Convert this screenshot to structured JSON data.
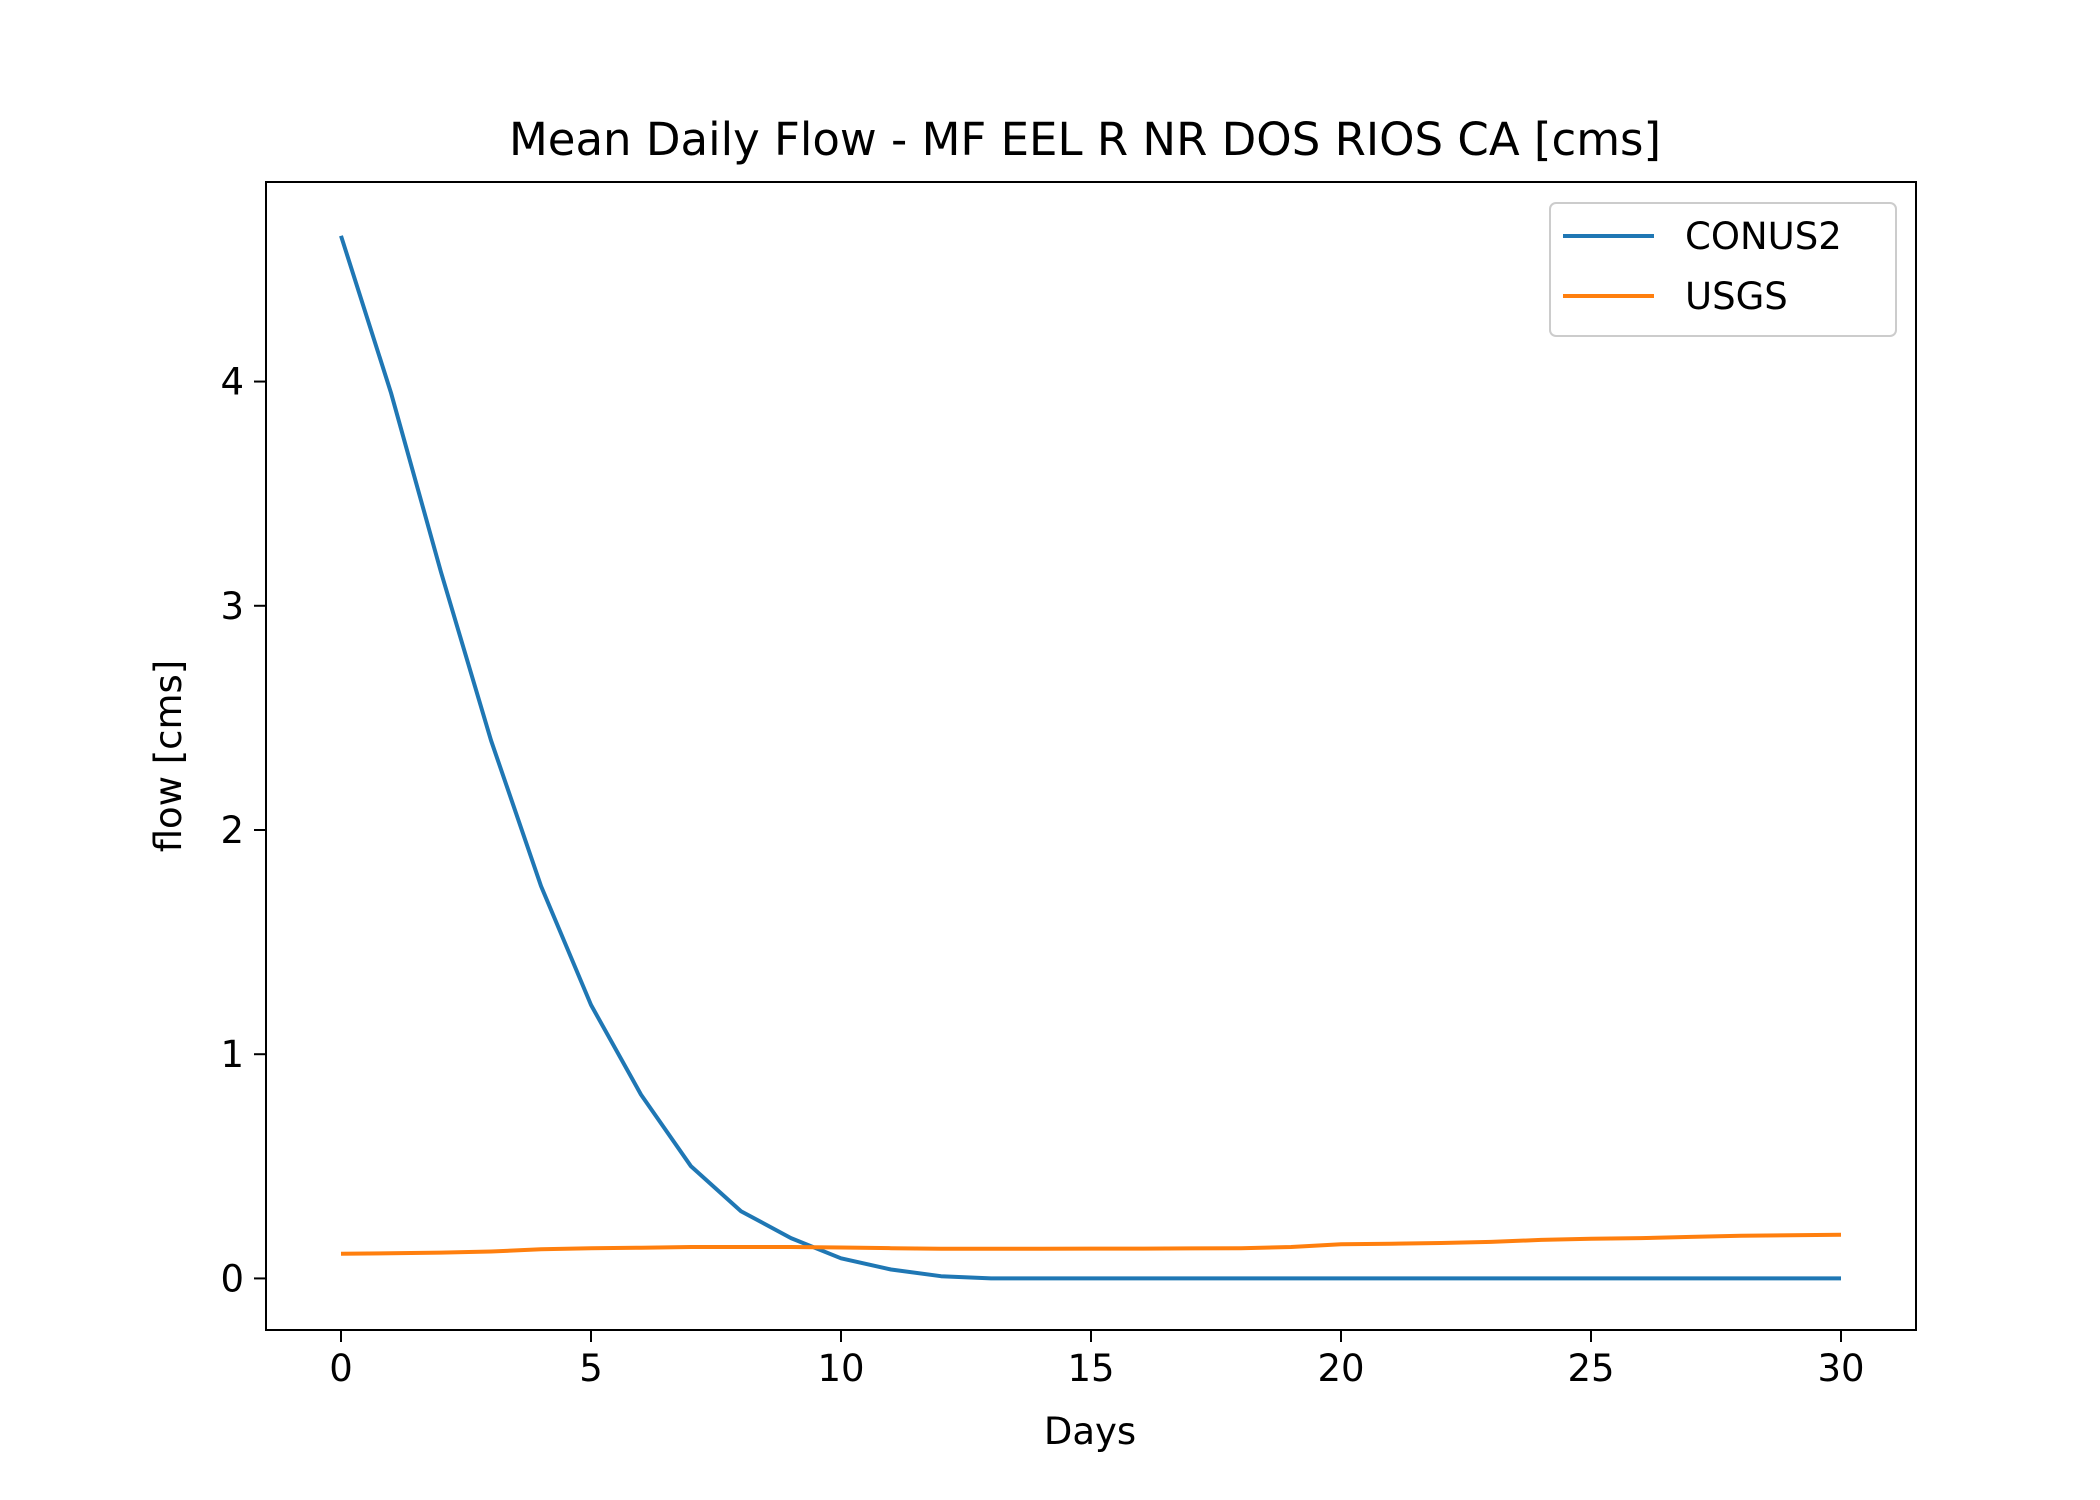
{
  "chart_data": {
    "type": "line",
    "title": "Mean Daily Flow - MF EEL R NR DOS RIOS CA [cms]",
    "xlabel": "Days",
    "ylabel": "flow [cms]",
    "xlim": [
      -1.5,
      31.5
    ],
    "ylim": [
      -0.23,
      4.89
    ],
    "xticks": [
      0,
      5,
      10,
      15,
      20,
      25,
      30
    ],
    "yticks": [
      0,
      1,
      2,
      3,
      4
    ],
    "grid": false,
    "legend_position": "top-right",
    "x": [
      0,
      1,
      2,
      3,
      4,
      5,
      6,
      7,
      8,
      9,
      10,
      11,
      12,
      13,
      14,
      15,
      16,
      17,
      18,
      19,
      20,
      21,
      22,
      23,
      24,
      25,
      26,
      27,
      28,
      29,
      30
    ],
    "series": [
      {
        "name": "CONUS2",
        "color": "#1f77b4",
        "values": [
          4.65,
          3.95,
          3.15,
          2.4,
          1.75,
          1.22,
          0.82,
          0.5,
          0.3,
          0.18,
          0.09,
          0.04,
          0.01,
          0.0,
          0.0,
          0.0,
          0.0,
          0.0,
          0.0,
          0.0,
          0.0,
          0.0,
          0.0,
          0.0,
          0.0,
          0.0,
          0.0,
          0.0,
          0.0,
          0.0,
          0.0
        ]
      },
      {
        "name": "USGS",
        "color": "#ff7f0e",
        "values": [
          0.11,
          0.112,
          0.115,
          0.12,
          0.13,
          0.135,
          0.137,
          0.14,
          0.14,
          0.14,
          0.138,
          0.135,
          0.132,
          0.132,
          0.132,
          0.133,
          0.133,
          0.134,
          0.135,
          0.14,
          0.152,
          0.155,
          0.158,
          0.163,
          0.172,
          0.177,
          0.18,
          0.185,
          0.19,
          0.193,
          0.195
        ]
      }
    ]
  }
}
